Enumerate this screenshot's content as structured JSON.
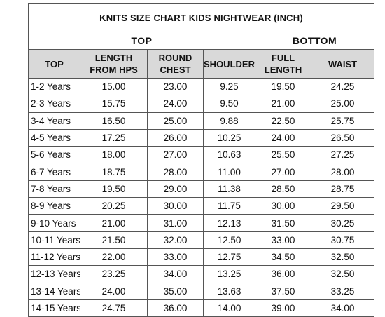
{
  "title": "KNITS SIZE CHART KIDS NIGHTWEAR (INCH)",
  "groups": {
    "top": "TOP",
    "bottom": "BOTTOM"
  },
  "headers": {
    "size": "TOP",
    "length_line1": "LENGTH",
    "length_line2": "FROM HPS",
    "chest_line1": "ROUND",
    "chest_line2": "CHEST",
    "shoulder": "SHOULDER",
    "full_length_line1": "FULL",
    "full_length_line2": "LENGTH",
    "waist": "WAIST"
  },
  "rows": [
    [
      "1-2 Years",
      "15.00",
      "23.00",
      "9.25",
      "19.50",
      "24.25"
    ],
    [
      "2-3 Years",
      "15.75",
      "24.00",
      "9.50",
      "21.00",
      "25.00"
    ],
    [
      "3-4 Years",
      "16.50",
      "25.00",
      "9.88",
      "22.50",
      "25.75"
    ],
    [
      "4-5 Years",
      "17.25",
      "26.00",
      "10.25",
      "24.00",
      "26.50"
    ],
    [
      "5-6 Years",
      "18.00",
      "27.00",
      "10.63",
      "25.50",
      "27.25"
    ],
    [
      "6-7 Years",
      "18.75",
      "28.00",
      "11.00",
      "27.00",
      "28.00"
    ],
    [
      "7-8 Years",
      "19.50",
      "29.00",
      "11.38",
      "28.50",
      "28.75"
    ],
    [
      "8-9 Years",
      "20.25",
      "30.00",
      "11.75",
      "30.00",
      "29.50"
    ],
    [
      "9-10 Years",
      "21.00",
      "31.00",
      "12.13",
      "31.50",
      "30.25"
    ],
    [
      "10-11 Years",
      "21.50",
      "32.00",
      "12.50",
      "33.00",
      "30.75"
    ],
    [
      "11-12 Years",
      "22.00",
      "33.00",
      "12.75",
      "34.50",
      "32.50"
    ],
    [
      "12-13 Years",
      "23.25",
      "34.00",
      "13.25",
      "36.00",
      "32.50"
    ],
    [
      "13-14 Years",
      "24.00",
      "35.00",
      "13.63",
      "37.50",
      "33.25"
    ],
    [
      "14-15 Years",
      "24.75",
      "36.00",
      "14.00",
      "39.00",
      "34.00"
    ]
  ]
}
